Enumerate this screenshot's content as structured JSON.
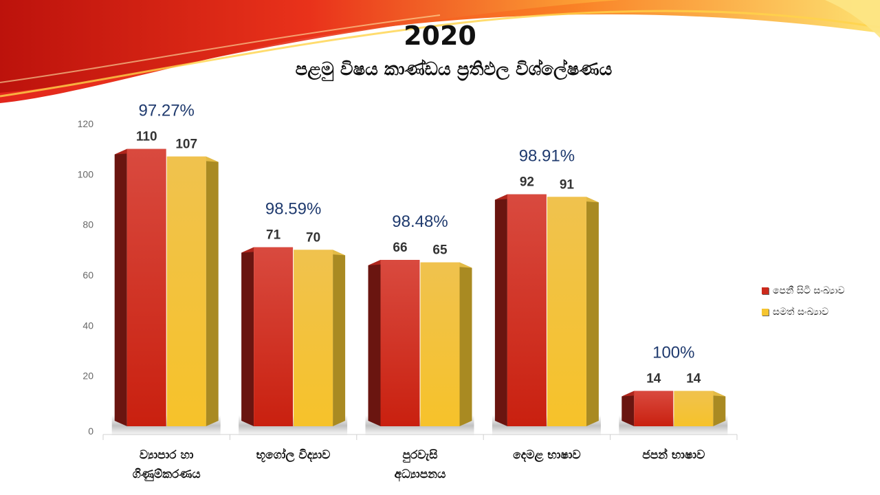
{
  "title": "2020",
  "subtitle": "පළමු විෂය කාණ්ඩය ප්‍රතිඵල විශ්ලේෂණය",
  "colors": {
    "series1": "#cc2a1c",
    "series1_light": "#e8605a",
    "series2": "#f5c531",
    "series2_light": "#ffe27a",
    "axis_text": "#666666",
    "data_label": "#333333",
    "percent_label": "#1f3a6e"
  },
  "legend": {
    "placement": "right",
    "items": [
      {
        "label": "පෙනී සිටි සංඛ්‍යාව"
      },
      {
        "label": "සමත් සංඛ්‍යාව"
      }
    ]
  },
  "chart_data": {
    "type": "bar",
    "categories": [
      "ව්‍යාපාර හා ගිණුම්කරණය",
      "භූගෝල විද්‍යාව",
      "පුරවැසි අධ්‍යාපනය",
      "දෙමළ භාෂාව",
      "ජපන් භාෂාව"
    ],
    "category_lines": [
      [
        "ව්‍යාපාර හා",
        "ගිණුම්කරණය"
      ],
      [
        "භූගෝල විද්‍යාව"
      ],
      [
        "පුරවැසි",
        "අධ්‍යාපනය"
      ],
      [
        "දෙමළ භාෂාව"
      ],
      [
        "ජපන් භාෂාව"
      ]
    ],
    "series": [
      {
        "name": "පෙනී සිටි සංඛ්‍යාව",
        "values": [
          110,
          71,
          66,
          92,
          14
        ]
      },
      {
        "name": "සමත් සංඛ්‍යාව",
        "values": [
          107,
          70,
          65,
          91,
          14
        ]
      }
    ],
    "percentages": [
      "97.27%",
      "98.59%",
      "98.48%",
      "98.91%",
      "100%"
    ],
    "ylim": [
      0,
      120
    ],
    "yticks": [
      0,
      20,
      40,
      60,
      80,
      100,
      120
    ],
    "grid": false,
    "style": "3d-column"
  }
}
